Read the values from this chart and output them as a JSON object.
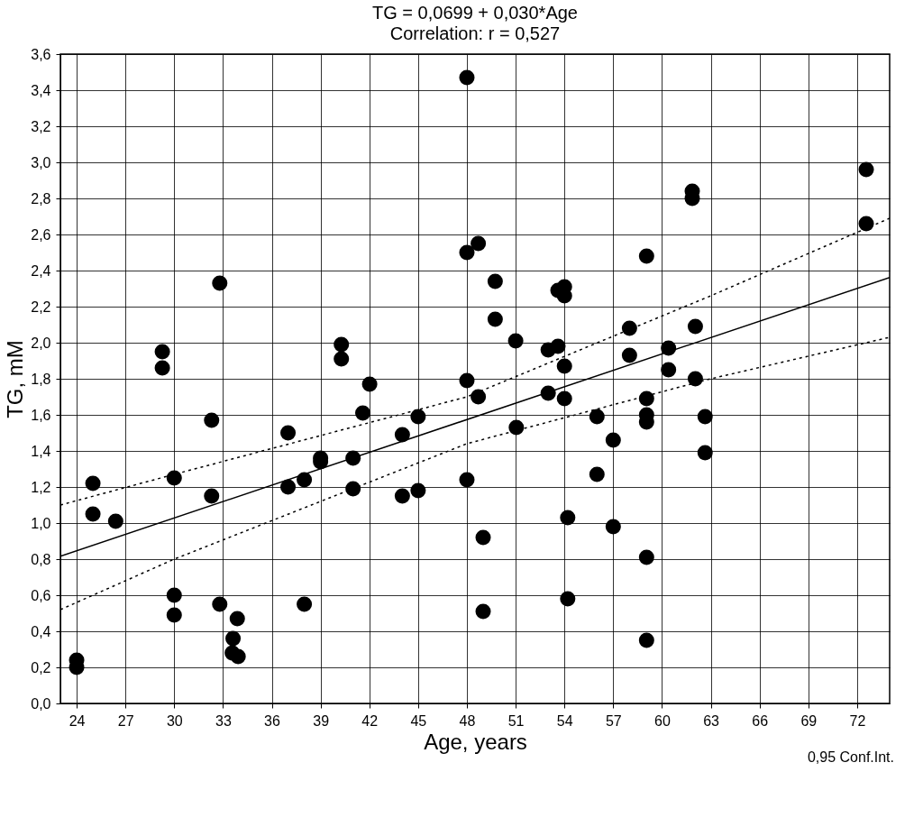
{
  "chart_data": {
    "type": "scatter",
    "title": "TG  = 0,0699 + 0,030*Age",
    "subtitle": "Correlation: r = 0,527",
    "xlabel": "Age, years",
    "ylabel": "TG, mM",
    "xlim": [
      23,
      74
    ],
    "xticks": [
      24,
      27,
      30,
      33,
      36,
      39,
      42,
      45,
      48,
      51,
      54,
      57,
      60,
      63,
      66,
      69,
      72
    ],
    "ylim": [
      0,
      3.6
    ],
    "yticks": [
      {
        "value": 0,
        "label": "0,0"
      },
      {
        "value": 0.2,
        "label": "0,2"
      },
      {
        "value": 0.4,
        "label": "0,4"
      },
      {
        "value": 0.6,
        "label": "0,6"
      },
      {
        "value": 0.8,
        "label": "0,8"
      },
      {
        "value": 1.0,
        "label": "1,0"
      },
      {
        "value": 1.2,
        "label": "1,2"
      },
      {
        "value": 1.4,
        "label": "1,4"
      },
      {
        "value": 1.6,
        "label": "1,6"
      },
      {
        "value": 1.8,
        "label": "1,8"
      },
      {
        "value": 2.0,
        "label": "2,0"
      },
      {
        "value": 2.2,
        "label": "2,2"
      },
      {
        "value": 2.4,
        "label": "2,4"
      },
      {
        "value": 2.6,
        "label": "2,6"
      },
      {
        "value": 2.8,
        "label": "2,8"
      },
      {
        "value": 3.0,
        "label": "3,0"
      },
      {
        "value": 3.2,
        "label": "3,2"
      },
      {
        "value": 3.4,
        "label": "3,4"
      },
      {
        "value": 3.6,
        "label": "3,6"
      }
    ],
    "grid": true,
    "marker": "circle",
    "annotations": [
      "0,95 Conf.Int."
    ],
    "series": [
      {
        "color": "#000000",
        "x": [
          29.27,
          29.27,
          32.8,
          40.28,
          40.28,
          24.0,
          24.0,
          25.0,
          25.0,
          26.4,
          30.0,
          30.0,
          30.0,
          32.3,
          32.3,
          32.8,
          33.88,
          33.62,
          33.57,
          33.93,
          37.0,
          37.0,
          38.0,
          38.0,
          39.0,
          39.0,
          42.02,
          41.6,
          41.0,
          41.0,
          44.03,
          44.03,
          45.0,
          45.0,
          48.0,
          48.7,
          48.0,
          49.0,
          49.0,
          51.04,
          53.0,
          54.0,
          54.0,
          54.2,
          54.2,
          56.0,
          56.0,
          57.0,
          57.0,
          48.0,
          48.0,
          48.7,
          49.74,
          49.74,
          51.0,
          53.0,
          53.6,
          53.6,
          54.0,
          54.0,
          61.86,
          61.86,
          72.56,
          72.56,
          59.05,
          58.0,
          58.0,
          62.05,
          60.4,
          60.4,
          62.05,
          59.05,
          59.05,
          59.05,
          62.65,
          62.65,
          59.05,
          59.05
        ],
        "values": [
          1.95,
          1.86,
          2.33,
          1.99,
          1.91,
          0.24,
          0.2,
          1.22,
          1.05,
          1.01,
          1.25,
          0.6,
          0.49,
          1.57,
          1.15,
          0.55,
          0.47,
          0.36,
          0.28,
          0.26,
          1.5,
          1.2,
          1.24,
          0.55,
          1.36,
          1.34,
          1.77,
          1.61,
          1.36,
          1.19,
          1.49,
          1.15,
          1.59,
          1.18,
          1.79,
          1.7,
          1.24,
          0.92,
          0.51,
          1.53,
          1.72,
          1.87,
          1.69,
          1.03,
          0.58,
          1.59,
          1.27,
          1.46,
          0.98,
          3.47,
          2.5,
          2.55,
          2.34,
          2.13,
          2.01,
          1.96,
          1.98,
          2.29,
          2.31,
          2.26,
          2.84,
          2.8,
          2.96,
          2.66,
          2.48,
          2.08,
          1.93,
          2.09,
          1.97,
          1.85,
          1.8,
          1.69,
          1.6,
          1.56,
          1.59,
          1.39,
          0.81,
          0.35
        ]
      },
      {
        "type": "line",
        "color": "#000000",
        "line_style": "solid",
        "marker": "none",
        "x": [
          23,
          74
        ],
        "values": [
          0.816,
          2.362
        ]
      },
      {
        "type": "line",
        "color": "#000000",
        "line_style": "dotted",
        "marker": "none",
        "x": [
          23,
          30,
          48,
          63,
          74
        ],
        "values": [
          1.1,
          1.27,
          1.7,
          2.26,
          2.69
        ]
      },
      {
        "type": "line",
        "color": "#000000",
        "line_style": "dotted",
        "marker": "none",
        "x": [
          23,
          30,
          48,
          63,
          74
        ],
        "values": [
          0.52,
          0.8,
          1.44,
          1.8,
          2.03
        ]
      }
    ]
  }
}
